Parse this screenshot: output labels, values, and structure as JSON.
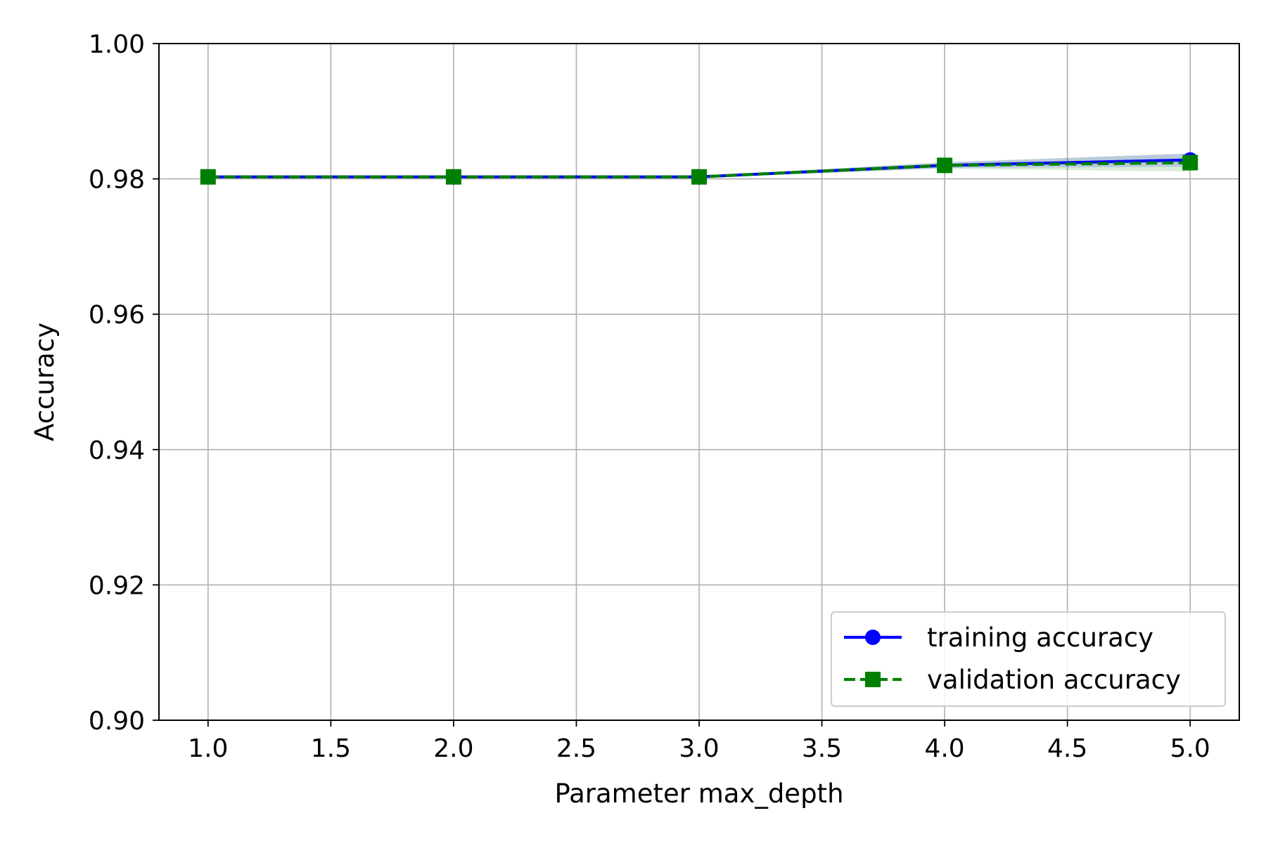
{
  "chart_data": {
    "type": "line",
    "title": "",
    "xlabel": "Parameter max_depth",
    "ylabel": "Accuracy",
    "xlim": [
      0.8,
      5.2
    ],
    "ylim": [
      0.9,
      1.0
    ],
    "x": [
      1.0,
      2.0,
      3.0,
      4.0,
      5.0
    ],
    "x_ticks": [
      1.0,
      1.5,
      2.0,
      2.5,
      3.0,
      3.5,
      4.0,
      4.5,
      5.0
    ],
    "x_tick_labels": [
      "1.0",
      "1.5",
      "2.0",
      "2.5",
      "3.0",
      "3.5",
      "4.0",
      "4.5",
      "5.0"
    ],
    "y_ticks": [
      0.9,
      0.92,
      0.94,
      0.96,
      0.98,
      1.0
    ],
    "y_tick_labels": [
      "0.90",
      "0.92",
      "0.94",
      "0.96",
      "0.98",
      "1.00"
    ],
    "grid": true,
    "legend_position": "lower-right",
    "series": [
      {
        "name": "training accuracy",
        "values": [
          0.9803,
          0.9803,
          0.9803,
          0.982,
          0.9828
        ],
        "std": [
          0.0001,
          0.0001,
          0.0001,
          0.0004,
          0.001
        ],
        "color": "#0000ff",
        "fill_color": "#0000ff",
        "line_style": "solid",
        "marker": "circle"
      },
      {
        "name": "validation accuracy",
        "values": [
          0.9803,
          0.9803,
          0.9803,
          0.982,
          0.9824
        ],
        "std": [
          0.0001,
          0.0001,
          0.0001,
          0.0005,
          0.0013
        ],
        "color": "#008000",
        "fill_color": "#008000",
        "line_style": "dashed",
        "marker": "square"
      }
    ]
  }
}
